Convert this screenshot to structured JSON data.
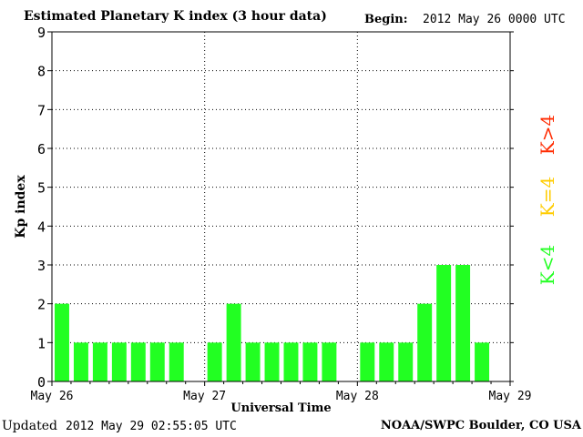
{
  "header": {
    "title": "Estimated Planetary K index (3 hour data)",
    "begin_label": "Begin:",
    "begin_value": "2012 May 26 0000 UTC"
  },
  "footer": {
    "updated_label": "Updated",
    "updated_value": "2012 May 29 02:55:05 UTC",
    "credit": "NOAA/SWPC Boulder, CO USA"
  },
  "legend": {
    "high": {
      "label": "K>4",
      "color": "#ff2a00"
    },
    "mid": {
      "label": "K=4",
      "color": "#ffcc00"
    },
    "low": {
      "label": "K<4",
      "color": "#22ff22"
    }
  },
  "chart_data": {
    "type": "bar",
    "xlabel": "Universal Time",
    "ylabel": "Kp index",
    "ylim": [
      0,
      9
    ],
    "yticks": [
      0,
      1,
      2,
      3,
      4,
      5,
      6,
      7,
      8,
      9
    ],
    "day_labels": [
      "May 26",
      "May 27",
      "May 28",
      "May 29"
    ],
    "bar_color": "#22ff22",
    "grid": "dotted horizontal and vertical",
    "values": [
      2,
      1,
      1,
      1,
      1,
      1,
      1,
      null,
      1,
      2,
      1,
      1,
      1,
      1,
      1,
      null,
      1,
      1,
      1,
      2,
      3,
      3,
      1,
      null
    ]
  }
}
